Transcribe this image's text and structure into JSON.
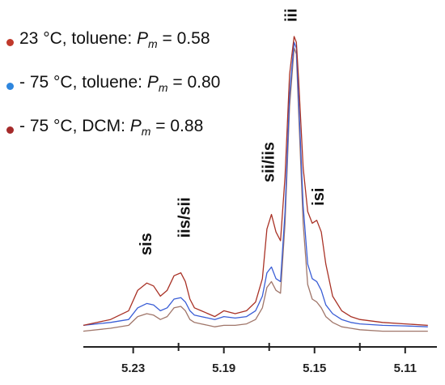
{
  "chart_data": {
    "type": "line",
    "title": "",
    "xlabel": "",
    "ylabel": "",
    "x_reversed": true,
    "xlim": [
      5.252,
      5.096
    ],
    "ylim": [
      0,
      1
    ],
    "x_ticks": [
      "5.23",
      "5.19",
      "5.15",
      "5.11"
    ],
    "x_tick_values": [
      5.23,
      5.19,
      5.15,
      5.11
    ],
    "x_minor_tick_values": [
      5.21,
      5.17,
      5.13
    ],
    "grid": false,
    "legend_position": "top-left",
    "legend": [
      {
        "prefix": "23 °C, toluene: ",
        "p": "P",
        "sub": "m",
        "suffix": " = 0.58",
        "color": "#c0392b"
      },
      {
        "prefix": "- 75 °C, toluene: ",
        "p": "P",
        "sub": "m",
        "suffix": " = 0.80",
        "color": "#2e86de"
      },
      {
        "prefix": "- 75 °C, DCM: ",
        "p": "P",
        "sub": "m",
        "suffix": " = 0.88",
        "color": "#a52a2a"
      }
    ],
    "peak_labels": [
      {
        "text": "sis",
        "x": 5.222,
        "y": 0.25
      },
      {
        "text": "iis/sii",
        "x": 5.205,
        "y": 0.31
      },
      {
        "text": "sii/iis",
        "x": 5.168,
        "y": 0.5
      },
      {
        "text": "iii",
        "x": 5.158,
        "y": 1.05
      },
      {
        "text": "isi",
        "x": 5.146,
        "y": 0.42
      }
    ],
    "series": [
      {
        "color": "#a93226",
        "x": [
          5.252,
          5.24,
          5.232,
          5.228,
          5.224,
          5.221,
          5.218,
          5.215,
          5.212,
          5.209,
          5.207,
          5.205,
          5.203,
          5.2,
          5.197,
          5.194,
          5.19,
          5.185,
          5.18,
          5.176,
          5.173,
          5.171,
          5.169,
          5.167,
          5.165,
          5.163,
          5.161,
          5.159,
          5.158,
          5.157,
          5.155,
          5.153,
          5.151,
          5.149,
          5.147,
          5.145,
          5.142,
          5.138,
          5.134,
          5.13,
          5.12,
          5.11,
          5.1
        ],
        "y": [
          0.01,
          0.03,
          0.06,
          0.13,
          0.155,
          0.145,
          0.11,
          0.13,
          0.18,
          0.19,
          0.16,
          0.1,
          0.07,
          0.06,
          0.05,
          0.04,
          0.06,
          0.05,
          0.06,
          0.09,
          0.17,
          0.34,
          0.39,
          0.33,
          0.3,
          0.52,
          0.87,
          1.0,
          0.98,
          0.85,
          0.55,
          0.4,
          0.36,
          0.37,
          0.33,
          0.22,
          0.11,
          0.06,
          0.04,
          0.03,
          0.02,
          0.015,
          0.01
        ]
      },
      {
        "color": "#3a5ed6",
        "x": [
          5.252,
          5.24,
          5.232,
          5.228,
          5.224,
          5.221,
          5.218,
          5.215,
          5.212,
          5.209,
          5.207,
          5.205,
          5.203,
          5.2,
          5.197,
          5.194,
          5.19,
          5.185,
          5.18,
          5.176,
          5.173,
          5.171,
          5.169,
          5.167,
          5.165,
          5.163,
          5.161,
          5.159,
          5.158,
          5.157,
          5.155,
          5.153,
          5.151,
          5.149,
          5.147,
          5.145,
          5.142,
          5.138,
          5.134,
          5.13,
          5.12,
          5.11,
          5.1
        ],
        "y": [
          0.01,
          0.02,
          0.03,
          0.07,
          0.085,
          0.08,
          0.06,
          0.07,
          0.1,
          0.105,
          0.09,
          0.06,
          0.045,
          0.04,
          0.035,
          0.03,
          0.04,
          0.035,
          0.04,
          0.06,
          0.11,
          0.19,
          0.21,
          0.17,
          0.16,
          0.4,
          0.8,
          0.98,
          0.96,
          0.78,
          0.42,
          0.22,
          0.17,
          0.16,
          0.13,
          0.08,
          0.05,
          0.03,
          0.02,
          0.015,
          0.01,
          0.008,
          0.005
        ]
      },
      {
        "color": "#a0766a",
        "x": [
          5.252,
          5.24,
          5.232,
          5.228,
          5.224,
          5.221,
          5.218,
          5.215,
          5.212,
          5.209,
          5.207,
          5.205,
          5.203,
          5.2,
          5.197,
          5.194,
          5.19,
          5.185,
          5.18,
          5.176,
          5.173,
          5.171,
          5.169,
          5.167,
          5.165,
          5.163,
          5.161,
          5.159,
          5.158,
          5.157,
          5.155,
          5.153,
          5.151,
          5.149,
          5.147,
          5.145,
          5.142,
          5.138,
          5.134,
          5.13,
          5.12,
          5.11,
          5.1
        ],
        "y": [
          -0.01,
          0.0,
          0.01,
          0.04,
          0.05,
          0.045,
          0.03,
          0.04,
          0.07,
          0.075,
          0.06,
          0.03,
          0.02,
          0.015,
          0.01,
          0.005,
          0.01,
          0.01,
          0.015,
          0.03,
          0.07,
          0.14,
          0.16,
          0.13,
          0.12,
          0.36,
          0.76,
          0.96,
          0.94,
          0.74,
          0.36,
          0.15,
          0.1,
          0.09,
          0.07,
          0.04,
          0.02,
          0.005,
          0.0,
          -0.005,
          -0.01,
          -0.01,
          -0.01
        ]
      }
    ]
  }
}
